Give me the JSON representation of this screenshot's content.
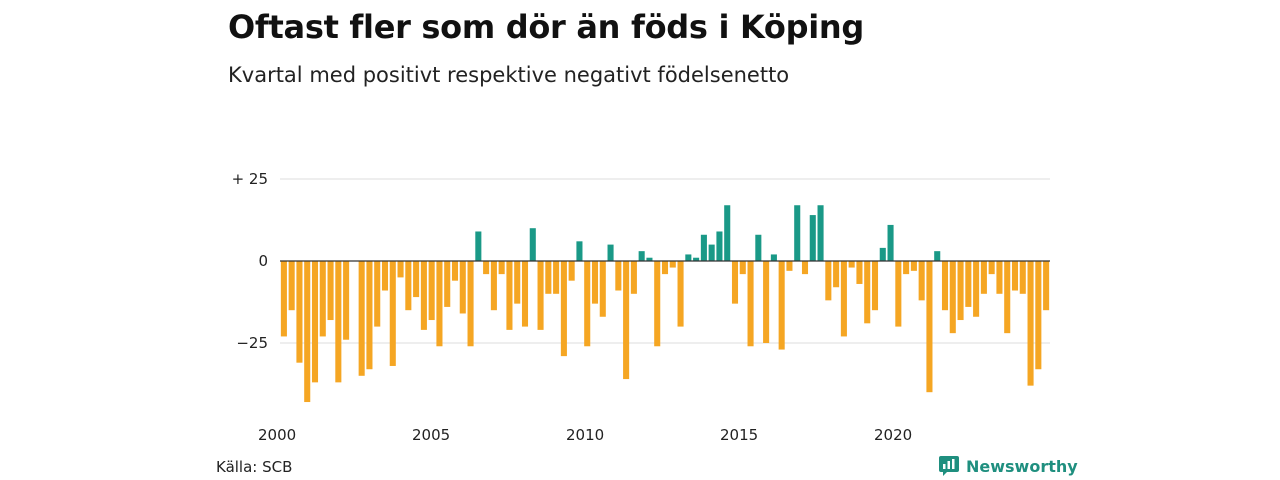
{
  "title": "Oftast fler som dör än föds i Köping",
  "subtitle": "Kvartal med positivt respektive negativt födelsenetto",
  "source": "Källa: SCB",
  "brand": "Newsworthy",
  "colors": {
    "positive": "#1a9987",
    "negative": "#f5a623",
    "grid": "#dddddd",
    "brand": "#1f8f7f"
  },
  "chart_data": {
    "type": "bar",
    "title": "Oftast fler som dör än föds i Köping",
    "subtitle": "Kvartal med positivt respektive negativt födelsenetto",
    "x_tick_labels": [
      "2000",
      "2005",
      "2010",
      "2015",
      "2020"
    ],
    "x_tick_positions": [
      2000,
      2005,
      2010,
      2015,
      2020
    ],
    "y_tick_labels": [
      "+ 25",
      "0",
      "−25"
    ],
    "y_tick_values": [
      25,
      0,
      -25
    ],
    "ylim": [
      -45,
      27
    ],
    "grid": true,
    "start": 2000,
    "end": 2025,
    "values": [
      -23,
      -15,
      -31,
      -43,
      -37,
      -23,
      -18,
      -37,
      -24,
      0,
      -35,
      -33,
      -20,
      -9,
      -32,
      -5,
      -15,
      -11,
      -21,
      -18,
      -26,
      -14,
      -6,
      -16,
      -26,
      9,
      -4,
      -15,
      -4,
      -21,
      -13,
      -20,
      10,
      -21,
      -10,
      -10,
      -29,
      -6,
      6,
      -26,
      -13,
      -17,
      5,
      -9,
      -36,
      -10,
      3,
      1,
      -26,
      -4,
      -2,
      -20,
      2,
      1,
      8,
      5,
      9,
      17,
      -13,
      -4,
      -26,
      8,
      -25,
      2,
      -27,
      -3,
      17,
      -4,
      14,
      17,
      -12,
      -8,
      -23,
      -2,
      -7,
      -19,
      -15,
      4,
      11,
      -20,
      -4,
      -3,
      -12,
      -40,
      3,
      -15,
      -22,
      -18,
      -14,
      -17,
      -10,
      -4,
      -10,
      -22,
      -9,
      -10,
      -38,
      -33,
      -15
    ]
  }
}
